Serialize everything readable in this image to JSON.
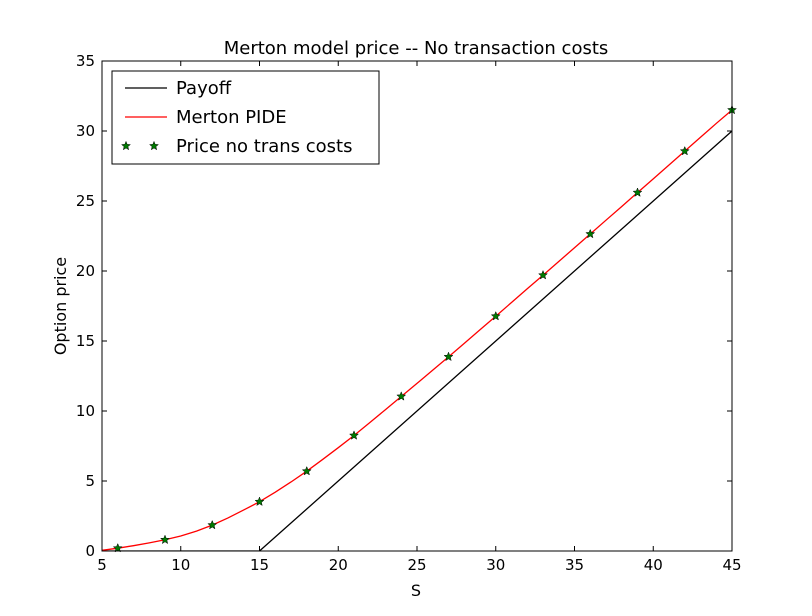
{
  "chart_data": {
    "type": "line",
    "title": "Merton model price -- No transaction costs",
    "xlabel": "S",
    "ylabel": "Option price",
    "xlim": [
      5,
      45
    ],
    "ylim": [
      0,
      35
    ],
    "xticks": [
      5,
      10,
      15,
      20,
      25,
      30,
      35,
      40,
      45
    ],
    "yticks": [
      0,
      5,
      10,
      15,
      20,
      25,
      30,
      35
    ],
    "grid": false,
    "legend_position": "upper-left",
    "series": [
      {
        "name": "Payoff",
        "style": "line",
        "color": "#000000",
        "x": [
          5,
          15,
          45
        ],
        "y": [
          0,
          0,
          30
        ]
      },
      {
        "name": "Merton PIDE",
        "style": "line",
        "color": "#ff0000",
        "x": [
          5,
          6,
          7,
          8,
          9,
          10,
          11,
          12,
          13,
          14,
          15,
          16,
          17,
          18,
          19,
          20,
          21,
          22,
          23,
          24,
          25,
          26,
          27,
          28,
          29,
          30,
          31,
          32,
          33,
          34,
          35,
          36,
          37,
          38,
          39,
          40,
          41,
          42,
          43,
          44,
          45
        ],
        "y": [
          0.05,
          0.2,
          0.38,
          0.58,
          0.8,
          1.07,
          1.42,
          1.85,
          2.36,
          2.93,
          3.52,
          4.2,
          4.93,
          5.7,
          6.53,
          7.38,
          8.25,
          9.17,
          10.1,
          11.04,
          11.97,
          12.92,
          13.87,
          14.83,
          15.8,
          16.77,
          17.75,
          18.73,
          19.7,
          20.68,
          21.66,
          22.64,
          23.63,
          24.61,
          25.6,
          26.58,
          27.57,
          28.56,
          29.55,
          30.54,
          31.5
        ]
      },
      {
        "name": "Price no trans costs",
        "style": "marker",
        "marker": "star",
        "color": "#007a00",
        "x": [
          6,
          9,
          12,
          15,
          18,
          21,
          24,
          27,
          30,
          33,
          36,
          39,
          42,
          45
        ],
        "y": [
          0.2,
          0.8,
          1.85,
          3.52,
          5.7,
          8.25,
          11.04,
          13.87,
          16.77,
          19.7,
          22.64,
          25.6,
          28.56,
          31.5
        ]
      }
    ]
  }
}
